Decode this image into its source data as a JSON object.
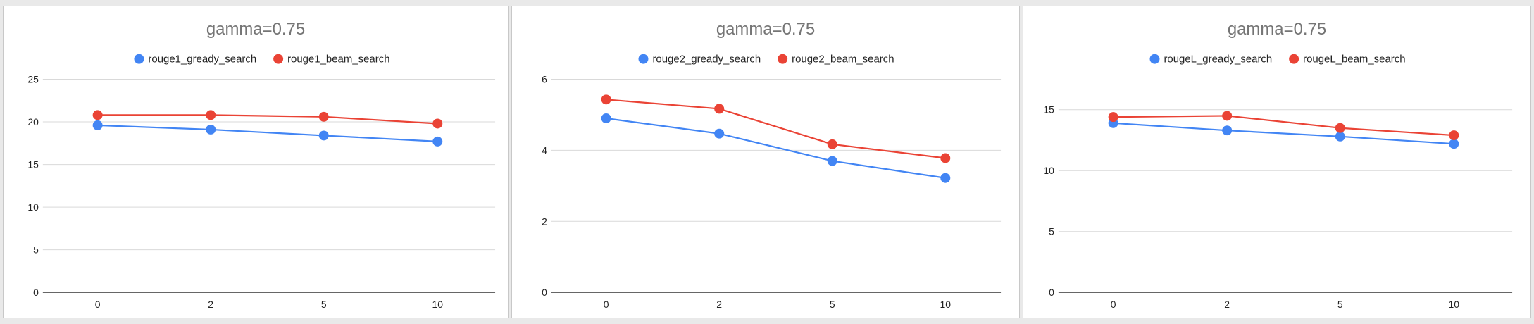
{
  "chart_data": [
    {
      "type": "line",
      "title": "gamma=0.75",
      "categories": [
        "0",
        "2",
        "5",
        "10"
      ],
      "series": [
        {
          "name": "rouge1_gready_search",
          "values": [
            19.6,
            19.1,
            18.4,
            17.7
          ],
          "color": "#4285f4"
        },
        {
          "name": "rouge1_beam_search",
          "values": [
            20.8,
            20.8,
            20.6,
            19.8
          ],
          "color": "#ea4335"
        }
      ],
      "yticks": [
        "0",
        "5",
        "10",
        "15",
        "20",
        "25"
      ],
      "ylim": [
        0,
        25
      ],
      "grid": true,
      "legend_position": "top"
    },
    {
      "type": "line",
      "title": "gamma=0.75",
      "categories": [
        "0",
        "2",
        "5",
        "10"
      ],
      "series": [
        {
          "name": "rouge2_gready_search",
          "values": [
            4.9,
            4.47,
            3.7,
            3.22
          ],
          "color": "#4285f4"
        },
        {
          "name": "rouge2_beam_search",
          "values": [
            5.43,
            5.17,
            4.17,
            3.78
          ],
          "color": "#ea4335"
        }
      ],
      "yticks": [
        "0",
        "2",
        "4",
        "6"
      ],
      "ylim": [
        0,
        6
      ],
      "grid": true,
      "legend_position": "top"
    },
    {
      "type": "line",
      "title": "gamma=0.75",
      "categories": [
        "0",
        "2",
        "5",
        "10"
      ],
      "series": [
        {
          "name": "rougeL_gready_search",
          "values": [
            13.9,
            13.3,
            12.8,
            12.2
          ],
          "color": "#4285f4"
        },
        {
          "name": "rougeL_beam_search",
          "values": [
            14.4,
            14.5,
            13.5,
            12.9
          ],
          "color": "#ea4335"
        }
      ],
      "yticks": [
        "0",
        "5",
        "10",
        "15"
      ],
      "ylim": [
        0,
        17.5
      ],
      "grid": true,
      "legend_position": "top"
    }
  ]
}
